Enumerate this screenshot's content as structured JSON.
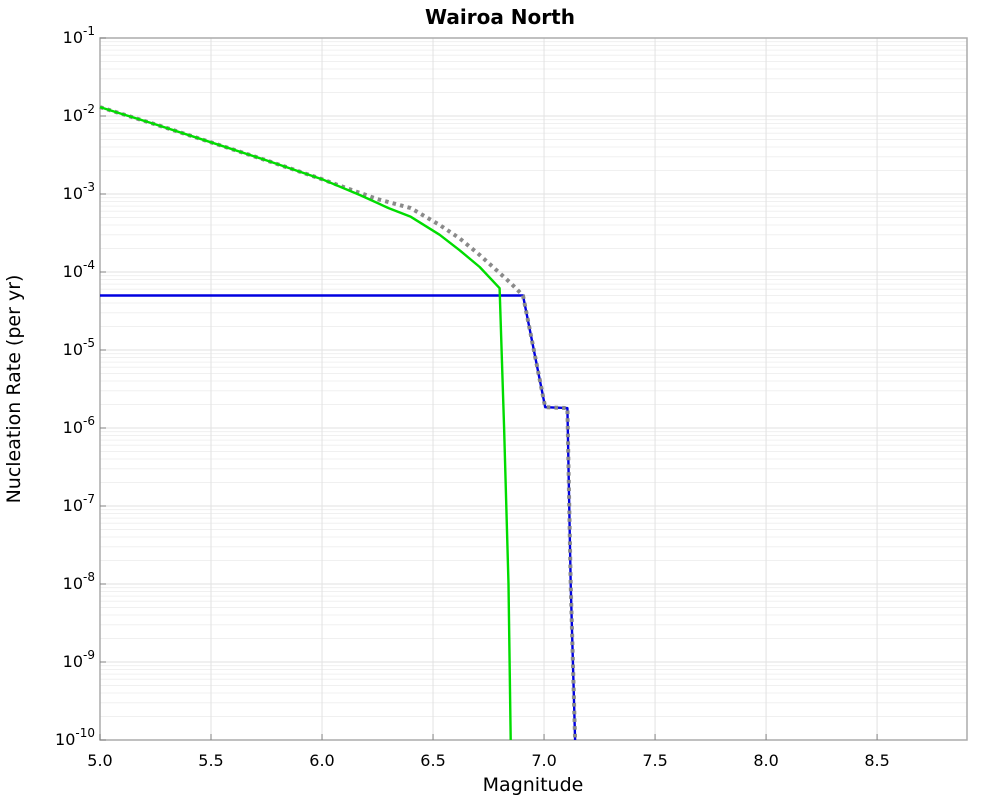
{
  "figure": {
    "background": "#ffffff"
  },
  "chart_data": {
    "type": "line",
    "title": "Wairoa North",
    "xlabel": "Magnitude",
    "ylabel": "Nucleation Rate (per yr)",
    "x_axis": {
      "scale": "linear",
      "min": 5.0,
      "max": 8.905,
      "ticks": [
        5.0,
        5.5,
        6.0,
        6.5,
        7.0,
        7.5,
        8.0,
        8.5
      ]
    },
    "y_axis": {
      "scale": "log",
      "min_exp": -10,
      "max_exp": -1,
      "tick_exponents": [
        -1,
        -2,
        -3,
        -4,
        -5,
        -6,
        -7,
        -8,
        -9,
        -10
      ],
      "tick_base": "10"
    },
    "grid": {
      "on": true,
      "major_color": "#e2e2e2",
      "minor_color": "#f0f0f0",
      "border_color": "#ababab",
      "tick_color": "#808080"
    },
    "legend": "none",
    "series": [
      {
        "name": "blue-solid",
        "color": "#0000e0",
        "style": "solid",
        "width": 2.4,
        "points": [
          [
            5.0,
            5e-05
          ],
          [
            6.905,
            5e-05
          ],
          [
            7.005,
            1.85e-06
          ],
          [
            7.105,
            1.8e-06
          ],
          [
            7.12,
            1e-08
          ],
          [
            7.14,
            1e-10
          ]
        ]
      },
      {
        "name": "gray-dotted",
        "color": "#8a8a8a",
        "style": "dotted",
        "width": 4,
        "points": [
          [
            5.0,
            0.013
          ],
          [
            5.25,
            0.0078
          ],
          [
            5.5,
            0.0046
          ],
          [
            5.75,
            0.0027
          ],
          [
            6.0,
            0.00155
          ],
          [
            6.1,
            0.00122
          ],
          [
            6.25,
            0.00086
          ],
          [
            6.4,
            0.00066
          ],
          [
            6.53,
            0.0004
          ],
          [
            6.62,
            0.00027
          ],
          [
            6.71,
            0.000165
          ],
          [
            6.8,
            9.7e-05
          ],
          [
            6.85,
            7.2e-05
          ],
          [
            6.905,
            5e-05
          ],
          [
            7.005,
            1.85e-06
          ],
          [
            7.105,
            1.8e-06
          ],
          [
            7.12,
            1e-08
          ],
          [
            7.14,
            1e-10
          ]
        ]
      },
      {
        "name": "green-solid",
        "color": "#00dc00",
        "style": "solid",
        "width": 2.4,
        "points": [
          [
            5.0,
            0.013
          ],
          [
            5.25,
            0.0078
          ],
          [
            5.5,
            0.0046
          ],
          [
            5.75,
            0.0027
          ],
          [
            6.0,
            0.00155
          ],
          [
            6.17,
            0.00097
          ],
          [
            6.3,
            0.00066
          ],
          [
            6.4,
            0.00051
          ],
          [
            6.53,
            0.0003
          ],
          [
            6.62,
            0.00019
          ],
          [
            6.71,
            0.000116
          ],
          [
            6.8,
            6.2e-05
          ],
          [
            6.82,
            1e-06
          ],
          [
            6.84,
            1e-08
          ],
          [
            6.85,
            1e-10
          ]
        ]
      }
    ]
  }
}
